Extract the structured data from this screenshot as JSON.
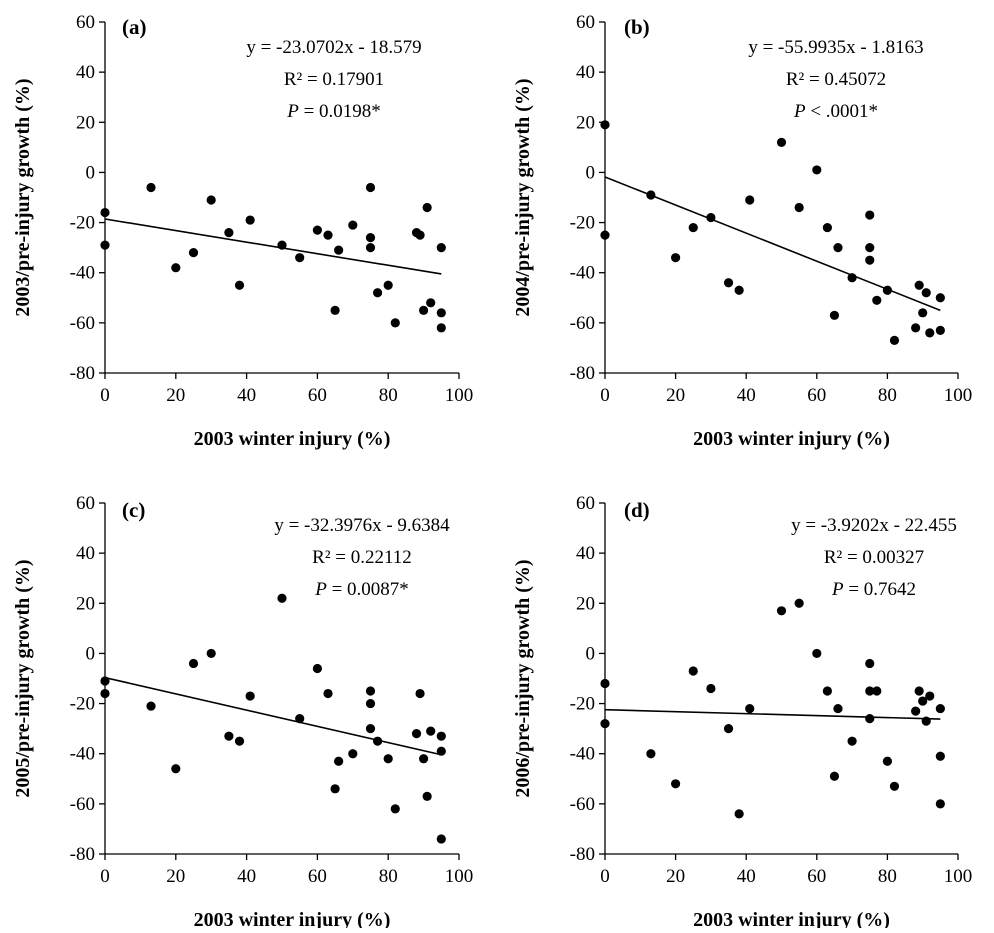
{
  "chart_data": [
    {
      "type": "scatter",
      "panel": "(a)",
      "xlabel": "2003 winter injury (%)",
      "ylabel": "2003/pre-injury growth (%)",
      "xlim": [
        0,
        100
      ],
      "ylim": [
        -80,
        60
      ],
      "xticks": [
        0,
        20,
        40,
        60,
        80,
        100
      ],
      "yticks": [
        -80,
        -60,
        -40,
        -20,
        0,
        20,
        40,
        60
      ],
      "x_tick_labels": [
        "0",
        "20",
        "40",
        "60",
        "80",
        "100"
      ],
      "y_tick_labels": [
        "-80",
        "-60",
        "-40",
        "-20",
        "0",
        "20",
        "40",
        "60"
      ],
      "equation": "y = -23.0702x - 18.579",
      "r2": "R² = 0.17901",
      "p_label": "P",
      "p_value": " = 0.0198*",
      "trendline": {
        "slope": -23.0702,
        "intercept": -18.579,
        "x_range": [
          0,
          95
        ]
      },
      "points": [
        [
          0,
          -16
        ],
        [
          0,
          -29
        ],
        [
          13,
          -6
        ],
        [
          20,
          -38
        ],
        [
          25,
          -32
        ],
        [
          30,
          -11
        ],
        [
          35,
          -24
        ],
        [
          38,
          -45
        ],
        [
          41,
          -19
        ],
        [
          50,
          -29
        ],
        [
          55,
          -34
        ],
        [
          60,
          -23
        ],
        [
          63,
          -25
        ],
        [
          65,
          -55
        ],
        [
          66,
          -31
        ],
        [
          70,
          -21
        ],
        [
          75,
          -6
        ],
        [
          75,
          -26
        ],
        [
          75,
          -30
        ],
        [
          77,
          -48
        ],
        [
          80,
          -45
        ],
        [
          82,
          -60
        ],
        [
          88,
          -24
        ],
        [
          89,
          -25
        ],
        [
          90,
          -55
        ],
        [
          91,
          -14
        ],
        [
          92,
          -52
        ],
        [
          95,
          -30
        ],
        [
          95,
          -56
        ],
        [
          95,
          -62
        ]
      ]
    },
    {
      "type": "scatter",
      "panel": "(b)",
      "xlabel": "2003 winter injury (%)",
      "ylabel": "2004/pre-injury growth (%)",
      "xlim": [
        0,
        100
      ],
      "ylim": [
        -80,
        60
      ],
      "xticks": [
        0,
        20,
        40,
        60,
        80,
        100
      ],
      "yticks": [
        -80,
        -60,
        -40,
        -20,
        0,
        20,
        40,
        60
      ],
      "x_tick_labels": [
        "0",
        "20",
        "40",
        "60",
        "80",
        "100"
      ],
      "y_tick_labels": [
        "-80",
        "-60",
        "-40",
        "-20",
        "0",
        "20",
        "40",
        "60"
      ],
      "equation": "y = -55.9935x - 1.8163",
      "r2": "R² = 0.45072",
      "p_label": "P",
      "p_value": " < .0001*",
      "trendline": {
        "slope": -55.9935,
        "intercept": -1.8163,
        "x_range": [
          0,
          95
        ]
      },
      "points": [
        [
          0,
          19
        ],
        [
          0,
          -25
        ],
        [
          13,
          -9
        ],
        [
          20,
          -34
        ],
        [
          25,
          -22
        ],
        [
          30,
          -18
        ],
        [
          35,
          -44
        ],
        [
          38,
          -47
        ],
        [
          41,
          -11
        ],
        [
          50,
          12
        ],
        [
          55,
          -14
        ],
        [
          60,
          1
        ],
        [
          63,
          -22
        ],
        [
          65,
          -57
        ],
        [
          66,
          -30
        ],
        [
          70,
          -42
        ],
        [
          75,
          -17
        ],
        [
          75,
          -30
        ],
        [
          75,
          -35
        ],
        [
          77,
          -51
        ],
        [
          80,
          -47
        ],
        [
          82,
          -67
        ],
        [
          88,
          -62
        ],
        [
          89,
          -45
        ],
        [
          90,
          -56
        ],
        [
          91,
          -48
        ],
        [
          92,
          -64
        ],
        [
          95,
          -50
        ],
        [
          95,
          -63
        ]
      ]
    },
    {
      "type": "scatter",
      "panel": "(c)",
      "xlabel": "2003 winter injury (%)",
      "ylabel": "2005/pre-injury growth (%)",
      "xlim": [
        0,
        100
      ],
      "ylim": [
        -80,
        60
      ],
      "xticks": [
        0,
        20,
        40,
        60,
        80,
        100
      ],
      "yticks": [
        -80,
        -60,
        -40,
        -20,
        0,
        20,
        40,
        60
      ],
      "x_tick_labels": [
        "0",
        "20",
        "40",
        "60",
        "80",
        "100"
      ],
      "y_tick_labels": [
        "-80",
        "-60",
        "-40",
        "-20",
        "0",
        "20",
        "40",
        "60"
      ],
      "equation": "y = -32.3976x - 9.6384",
      "r2": "R² = 0.22112",
      "p_label": "P",
      "p_value": " = 0.0087*",
      "trendline": {
        "slope": -32.3976,
        "intercept": -9.6384,
        "x_range": [
          0,
          95
        ]
      },
      "points": [
        [
          0,
          -11
        ],
        [
          0,
          -16
        ],
        [
          13,
          -21
        ],
        [
          20,
          -46
        ],
        [
          25,
          -4
        ],
        [
          30,
          0
        ],
        [
          35,
          -33
        ],
        [
          38,
          -35
        ],
        [
          41,
          -17
        ],
        [
          50,
          22
        ],
        [
          55,
          -26
        ],
        [
          60,
          -6
        ],
        [
          63,
          -16
        ],
        [
          65,
          -54
        ],
        [
          66,
          -43
        ],
        [
          70,
          -40
        ],
        [
          75,
          -15
        ],
        [
          75,
          -20
        ],
        [
          75,
          -30
        ],
        [
          77,
          -35
        ],
        [
          80,
          -42
        ],
        [
          82,
          -62
        ],
        [
          88,
          -32
        ],
        [
          89,
          -16
        ],
        [
          90,
          -42
        ],
        [
          91,
          -57
        ],
        [
          92,
          -31
        ],
        [
          95,
          -33
        ],
        [
          95,
          -39
        ],
        [
          95,
          -74
        ]
      ]
    },
    {
      "type": "scatter",
      "panel": "(d)",
      "xlabel": "2003 winter injury (%)",
      "ylabel": "2006/pre-injury growth (%)",
      "xlim": [
        0,
        100
      ],
      "ylim": [
        -80,
        60
      ],
      "xticks": [
        0,
        20,
        40,
        60,
        80,
        100
      ],
      "yticks": [
        -80,
        -60,
        -40,
        -20,
        0,
        20,
        40,
        60
      ],
      "x_tick_labels": [
        "0",
        "20",
        "40",
        "60",
        "80",
        "100"
      ],
      "y_tick_labels": [
        "-80",
        "-60",
        "-40",
        "-20",
        "0",
        "20",
        "40",
        "60"
      ],
      "equation": "y = -3.9202x - 22.455",
      "r2": "R² = 0.00327",
      "p_label": "P",
      "p_value": " = 0.7642",
      "trendline": {
        "slope": -3.9202,
        "intercept": -22.455,
        "x_range": [
          0,
          95
        ]
      },
      "points": [
        [
          0,
          -12
        ],
        [
          0,
          -28
        ],
        [
          13,
          -40
        ],
        [
          20,
          -52
        ],
        [
          25,
          -7
        ],
        [
          30,
          -14
        ],
        [
          35,
          -30
        ],
        [
          38,
          -64
        ],
        [
          41,
          -22
        ],
        [
          50,
          17
        ],
        [
          55,
          20
        ],
        [
          60,
          0
        ],
        [
          63,
          -15
        ],
        [
          65,
          -49
        ],
        [
          66,
          -22
        ],
        [
          70,
          -35
        ],
        [
          75,
          -4
        ],
        [
          75,
          -15
        ],
        [
          75,
          -26
        ],
        [
          77,
          -15
        ],
        [
          80,
          -43
        ],
        [
          82,
          -53
        ],
        [
          88,
          -23
        ],
        [
          89,
          -15
        ],
        [
          90,
          -19
        ],
        [
          91,
          -27
        ],
        [
          92,
          -17
        ],
        [
          95,
          -22
        ],
        [
          95,
          -41
        ],
        [
          95,
          -60
        ]
      ]
    }
  ]
}
